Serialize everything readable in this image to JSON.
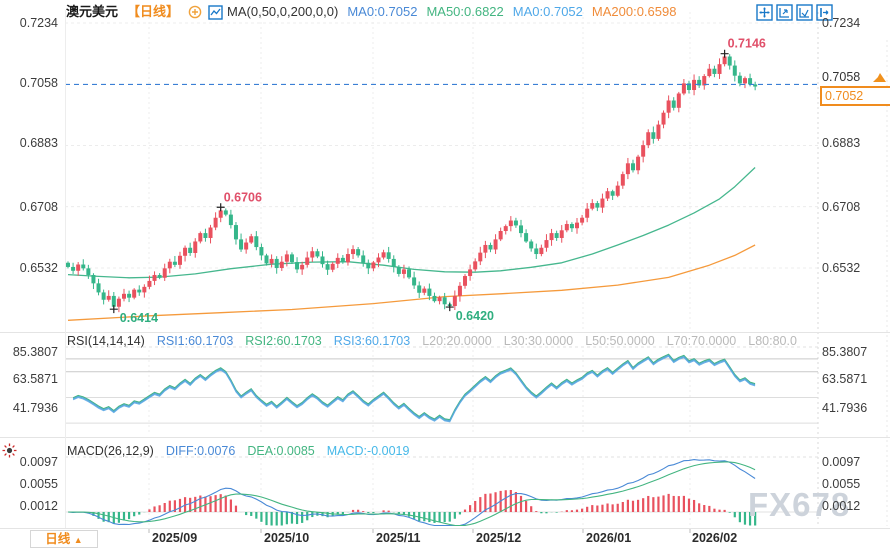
{
  "header": {
    "symbol": "澳元美元",
    "timeframe": "【日线】",
    "ma_settings": "MA(0,50,0,200,0,0)",
    "ma_values": [
      {
        "label": "MA0:0.7052",
        "color": "#4989d6"
      },
      {
        "label": "MA50:0.6822",
        "color": "#43b581"
      },
      {
        "label": "MA0:0.7052",
        "color": "#4fa8e8"
      },
      {
        "label": "MA200:0.6598",
        "color": "#f08c3a"
      }
    ]
  },
  "icons": {
    "toolbar": [
      "crosshair",
      "pane-zoom",
      "pane-layout",
      "collapse-panel"
    ],
    "header": [
      "add-indicator",
      "ma-indicator"
    ],
    "left": [
      "indicator-settings"
    ]
  },
  "price_axis": {
    "labels": [
      "0.7234",
      "0.7058",
      "0.6883",
      "0.6708",
      "0.6532"
    ]
  },
  "current_price": {
    "tick": "0.7058",
    "value": "0.7052"
  },
  "rsi_panel": {
    "title": "RSI(14,14,14)",
    "values": [
      {
        "label": "RSI1:60.1703",
        "color": "#4989d6"
      },
      {
        "label": "RSI2:60.1703",
        "color": "#43b581"
      },
      {
        "label": "RSI3:60.1703",
        "color": "#4fa8e8"
      },
      {
        "label": "L20:20.0000",
        "color": "#b9b9b9"
      },
      {
        "label": "L30:30.0000",
        "color": "#b9b9b9"
      },
      {
        "label": "L50:50.0000",
        "color": "#b9b9b9"
      },
      {
        "label": "L70:70.0000",
        "color": "#b9b9b9"
      },
      {
        "label": "L80:80.0",
        "color": "#b9b9b9"
      }
    ],
    "axis": [
      "85.3807",
      "63.5871",
      "41.7936"
    ]
  },
  "macd_panel": {
    "title": "MACD(26,12,9)",
    "values": [
      {
        "label": "DIFF:0.0076",
        "color": "#4989d6"
      },
      {
        "label": "DEA:0.0085",
        "color": "#43b581"
      },
      {
        "label": "MACD:-0.0019",
        "color": "#45b8e8"
      }
    ],
    "axis": [
      "0.0097",
      "0.0055",
      "0.0012"
    ]
  },
  "x_axis": {
    "tab": "日线",
    "tab_arrow": "▲",
    "dates": [
      "2025/09",
      "2025/10",
      "2025/11",
      "2025/12",
      "2026/01",
      "2026/02"
    ]
  },
  "watermark": "FX678",
  "chart_data": {
    "type": "candlestick",
    "title": "澳元美元 日线 (AUD/USD daily)",
    "x_months": [
      "2025/09",
      "2025/10",
      "2025/11",
      "2025/12",
      "2026/01",
      "2026/02"
    ],
    "price_ticks": [
      0.7234,
      0.7058,
      0.6883,
      0.6708,
      0.6532
    ],
    "ylim": [
      0.636,
      0.7247
    ],
    "price_line": 0.7058,
    "last_close": 0.7052,
    "closes": [
      0.6535,
      0.6524,
      0.6542,
      0.6531,
      0.6512,
      0.6488,
      0.6462,
      0.6441,
      0.6452,
      0.6421,
      0.6444,
      0.6458,
      0.6447,
      0.647,
      0.6462,
      0.6478,
      0.6495,
      0.6512,
      0.6504,
      0.6531,
      0.655,
      0.6541,
      0.6567,
      0.659,
      0.6575,
      0.6608,
      0.6632,
      0.6618,
      0.6648,
      0.6676,
      0.6697,
      0.6685,
      0.6655,
      0.6614,
      0.6585,
      0.6605,
      0.6623,
      0.6592,
      0.6568,
      0.6545,
      0.6558,
      0.6532,
      0.655,
      0.6571,
      0.6549,
      0.6528,
      0.6541,
      0.6562,
      0.658,
      0.6565,
      0.6543,
      0.6527,
      0.6544,
      0.6561,
      0.6548,
      0.6572,
      0.6586,
      0.6568,
      0.6547,
      0.6531,
      0.6548,
      0.6562,
      0.6577,
      0.6558,
      0.6535,
      0.6515,
      0.6528,
      0.6505,
      0.6482,
      0.6461,
      0.6473,
      0.6452,
      0.6437,
      0.6448,
      0.6428,
      0.6423,
      0.6452,
      0.6481,
      0.6509,
      0.6528,
      0.6551,
      0.6576,
      0.6598,
      0.6585,
      0.6614,
      0.6638,
      0.6652,
      0.6668,
      0.6654,
      0.6632,
      0.6608,
      0.6588,
      0.6572,
      0.659,
      0.6612,
      0.6632,
      0.6618,
      0.664,
      0.6658,
      0.6646,
      0.6662,
      0.6676,
      0.6702,
      0.6718,
      0.6705,
      0.6731,
      0.6752,
      0.6739,
      0.6768,
      0.6801,
      0.6832,
      0.6812,
      0.6851,
      0.6884,
      0.6921,
      0.6902,
      0.6943,
      0.6977,
      0.7012,
      0.6991,
      0.7032,
      0.7061,
      0.7042,
      0.7071,
      0.7055,
      0.7082,
      0.7103,
      0.7088,
      0.7116,
      0.7138,
      0.7112,
      0.7083,
      0.7061,
      0.7076,
      0.7058,
      0.7052
    ],
    "annotations": [
      {
        "index": 9,
        "type": "low",
        "value": 0.6414,
        "label": "0.6414"
      },
      {
        "index": 30,
        "type": "high",
        "value": 0.6706,
        "label": "0.6706"
      },
      {
        "index": 75,
        "type": "low",
        "value": 0.642,
        "label": "0.6420"
      },
      {
        "index": 129,
        "type": "high",
        "value": 0.7146,
        "label": "0.7146"
      }
    ],
    "ma": {
      "ma50_current": 0.6822,
      "ma200_current": 0.6598,
      "ma50_anchors": [
        [
          0,
          0.6513
        ],
        [
          6,
          0.6508
        ],
        [
          12,
          0.6504
        ],
        [
          18,
          0.6506
        ],
        [
          25,
          0.6515
        ],
        [
          32,
          0.653
        ],
        [
          40,
          0.6543
        ],
        [
          48,
          0.6549
        ],
        [
          55,
          0.655
        ],
        [
          62,
          0.654
        ],
        [
          68,
          0.6528
        ],
        [
          74,
          0.6521
        ],
        [
          80,
          0.652
        ],
        [
          85,
          0.6524
        ],
        [
          91,
          0.6534
        ],
        [
          97,
          0.6547
        ],
        [
          103,
          0.6572
        ],
        [
          108,
          0.6598
        ],
        [
          113,
          0.6625
        ],
        [
          118,
          0.6655
        ],
        [
          123,
          0.669
        ],
        [
          128,
          0.673
        ],
        [
          131,
          0.6765
        ],
        [
          135,
          0.682
        ]
      ],
      "ma200_anchors": [
        [
          0,
          0.6382
        ],
        [
          16,
          0.6395
        ],
        [
          30,
          0.6404
        ],
        [
          44,
          0.6413
        ],
        [
          60,
          0.643
        ],
        [
          74,
          0.645
        ],
        [
          85,
          0.6458
        ],
        [
          97,
          0.6468
        ],
        [
          108,
          0.6483
        ],
        [
          118,
          0.6505
        ],
        [
          126,
          0.654
        ],
        [
          131,
          0.6568
        ],
        [
          135,
          0.6598
        ]
      ]
    },
    "rsi": {
      "period": 14,
      "current": 60.1703,
      "ticks": [
        85.3807,
        63.5871,
        41.7936
      ],
      "levels": [
        30,
        50,
        70,
        80
      ]
    },
    "macd": {
      "params": [
        26,
        12,
        9
      ],
      "diff": 0.0076,
      "dea": 0.0085,
      "hist": -0.0019,
      "ticks": [
        0.0097,
        0.0055,
        0.0012
      ]
    },
    "colors": {
      "up": "#e9515e",
      "down": "#35b68a",
      "ma50": "#46b78e",
      "ma200": "#f59a3c",
      "price_line": "#3a7fd5",
      "accent_orange": "#f08c1e",
      "blue": "#4989d6",
      "green": "#43b581",
      "cyan": "#56a8d8",
      "grid": "#ececec",
      "annot_high": "#e0506a",
      "annot_low": "#2fae7f"
    }
  }
}
